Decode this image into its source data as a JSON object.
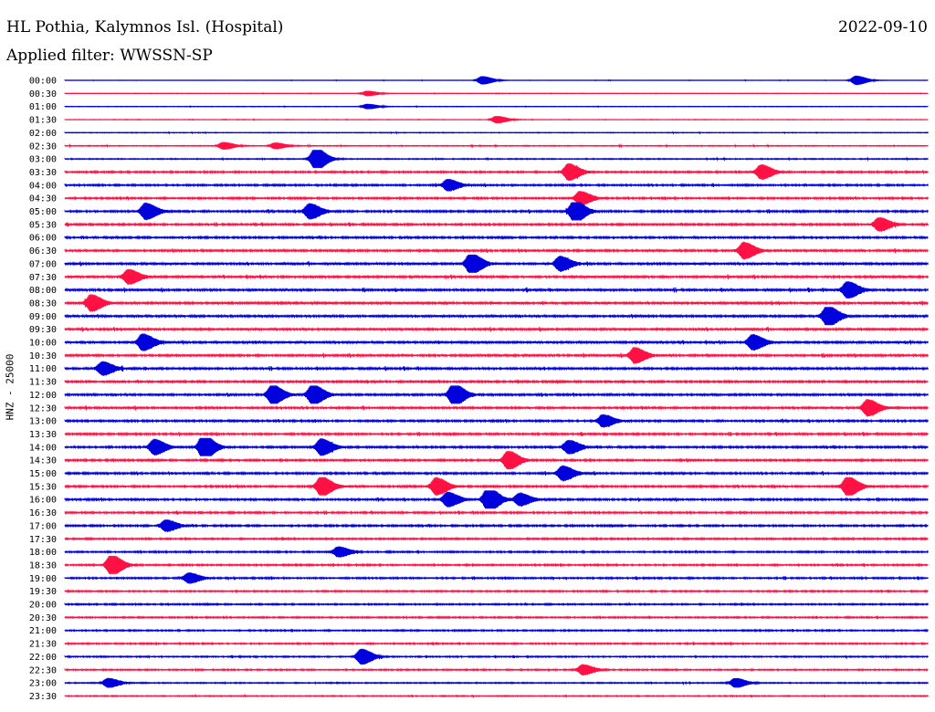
{
  "header": {
    "title": "HL Pothia, Kalymnos Isl. (Hospital)",
    "date": "2022-09-10",
    "filter": "Applied filter: WWSSN-SP"
  },
  "colors": {
    "blue": "#0000dd",
    "red": "#ff1144"
  },
  "chart_data": {
    "type": "line",
    "title": "HL Pothia, Kalymnos Isl. (Hospital)",
    "ylabel": "HNZ - 25000",
    "xlabel": "",
    "row_labels": [
      "00:00",
      "00:30",
      "01:00",
      "01:30",
      "02:00",
      "02:30",
      "03:00",
      "03:30",
      "04:00",
      "04:30",
      "05:00",
      "05:30",
      "06:00",
      "06:30",
      "07:00",
      "07:30",
      "08:00",
      "08:30",
      "09:00",
      "09:30",
      "10:00",
      "10:30",
      "11:00",
      "11:30",
      "12:00",
      "12:30",
      "13:00",
      "13:30",
      "14:00",
      "14:30",
      "15:00",
      "15:30",
      "16:00",
      "16:30",
      "17:00",
      "17:30",
      "18:00",
      "18:30",
      "19:00",
      "19:30",
      "20:00",
      "20:30",
      "21:00",
      "21:30",
      "22:00",
      "22:30",
      "23:00",
      "23:30"
    ],
    "series_colors": [
      "blue",
      "red"
    ],
    "noise_level": [
      0.15,
      0.15,
      0.2,
      0.2,
      0.25,
      0.3,
      0.35,
      0.6,
      0.6,
      0.6,
      0.65,
      0.65,
      0.65,
      0.7,
      0.75,
      0.75,
      0.75,
      0.75,
      0.75,
      0.75,
      0.75,
      0.75,
      0.7,
      0.7,
      0.7,
      0.7,
      0.65,
      0.65,
      0.65,
      0.65,
      0.65,
      0.65,
      0.65,
      0.6,
      0.6,
      0.55,
      0.55,
      0.55,
      0.55,
      0.5,
      0.5,
      0.5,
      0.5,
      0.5,
      0.45,
      0.45,
      0.4,
      0.35
    ],
    "events": [
      {
        "row": 0,
        "minute": 14.5,
        "amp": 0.8
      },
      {
        "row": 0,
        "minute": 27.5,
        "amp": 0.9
      },
      {
        "row": 1,
        "minute": 10.5,
        "amp": 0.5
      },
      {
        "row": 2,
        "minute": 10.5,
        "amp": 0.5
      },
      {
        "row": 3,
        "minute": 15,
        "amp": 0.7
      },
      {
        "row": 5,
        "minute": 5.5,
        "amp": 0.7
      },
      {
        "row": 5,
        "minute": 7.3,
        "amp": 0.6
      },
      {
        "row": 6,
        "minute": 8.7,
        "amp": 2.2
      },
      {
        "row": 7,
        "minute": 17.5,
        "amp": 1.6
      },
      {
        "row": 7,
        "minute": 24.2,
        "amp": 1.4
      },
      {
        "row": 8,
        "minute": 13.3,
        "amp": 1.1
      },
      {
        "row": 9,
        "minute": 17.9,
        "amp": 1.3
      },
      {
        "row": 10,
        "minute": 2.8,
        "amp": 1.6
      },
      {
        "row": 10,
        "minute": 8.5,
        "amp": 1.5
      },
      {
        "row": 10,
        "minute": 17.7,
        "amp": 2.2
      },
      {
        "row": 11,
        "minute": 28.3,
        "amp": 1.3
      },
      {
        "row": 13,
        "minute": 23.6,
        "amp": 1.6
      },
      {
        "row": 14,
        "minute": 14.1,
        "amp": 2.1
      },
      {
        "row": 14,
        "minute": 17.2,
        "amp": 1.4
      },
      {
        "row": 15,
        "minute": 2.2,
        "amp": 1.4
      },
      {
        "row": 16,
        "minute": 27.2,
        "amp": 1.6
      },
      {
        "row": 17,
        "minute": 0.9,
        "amp": 1.6
      },
      {
        "row": 18,
        "minute": 26.5,
        "amp": 2.0
      },
      {
        "row": 20,
        "minute": 2.7,
        "amp": 1.6
      },
      {
        "row": 20,
        "minute": 23.9,
        "amp": 1.5
      },
      {
        "row": 21,
        "minute": 19.8,
        "amp": 1.5
      },
      {
        "row": 22,
        "minute": 1.3,
        "amp": 1.3
      },
      {
        "row": 24,
        "minute": 7.2,
        "amp": 1.9
      },
      {
        "row": 24,
        "minute": 8.6,
        "amp": 2.0
      },
      {
        "row": 24,
        "minute": 13.5,
        "amp": 2.2
      },
      {
        "row": 25,
        "minute": 27.9,
        "amp": 1.6
      },
      {
        "row": 26,
        "minute": 18.7,
        "amp": 1.2
      },
      {
        "row": 28,
        "minute": 3.1,
        "amp": 1.5
      },
      {
        "row": 28,
        "minute": 4.8,
        "amp": 2.4
      },
      {
        "row": 28,
        "minute": 8.9,
        "amp": 1.6
      },
      {
        "row": 28,
        "minute": 17.5,
        "amp": 1.3
      },
      {
        "row": 29,
        "minute": 15.4,
        "amp": 1.8
      },
      {
        "row": 30,
        "minute": 17.3,
        "amp": 1.4
      },
      {
        "row": 31,
        "minute": 8.9,
        "amp": 1.9
      },
      {
        "row": 31,
        "minute": 12.9,
        "amp": 1.7
      },
      {
        "row": 31,
        "minute": 27.2,
        "amp": 1.9
      },
      {
        "row": 32,
        "minute": 14.7,
        "amp": 2.4
      },
      {
        "row": 32,
        "minute": 13.3,
        "amp": 1.4
      },
      {
        "row": 32,
        "minute": 15.8,
        "amp": 1.2
      },
      {
        "row": 34,
        "minute": 3.5,
        "amp": 1.1
      },
      {
        "row": 36,
        "minute": 9.5,
        "amp": 1.0
      },
      {
        "row": 37,
        "minute": 1.6,
        "amp": 2.0
      },
      {
        "row": 38,
        "minute": 4.3,
        "amp": 1.0
      },
      {
        "row": 44,
        "minute": 10.3,
        "amp": 1.5
      },
      {
        "row": 45,
        "minute": 18.0,
        "amp": 1.0
      },
      {
        "row": 46,
        "minute": 1.5,
        "amp": 0.9
      },
      {
        "row": 46,
        "minute": 23.3,
        "amp": 0.9
      }
    ]
  }
}
